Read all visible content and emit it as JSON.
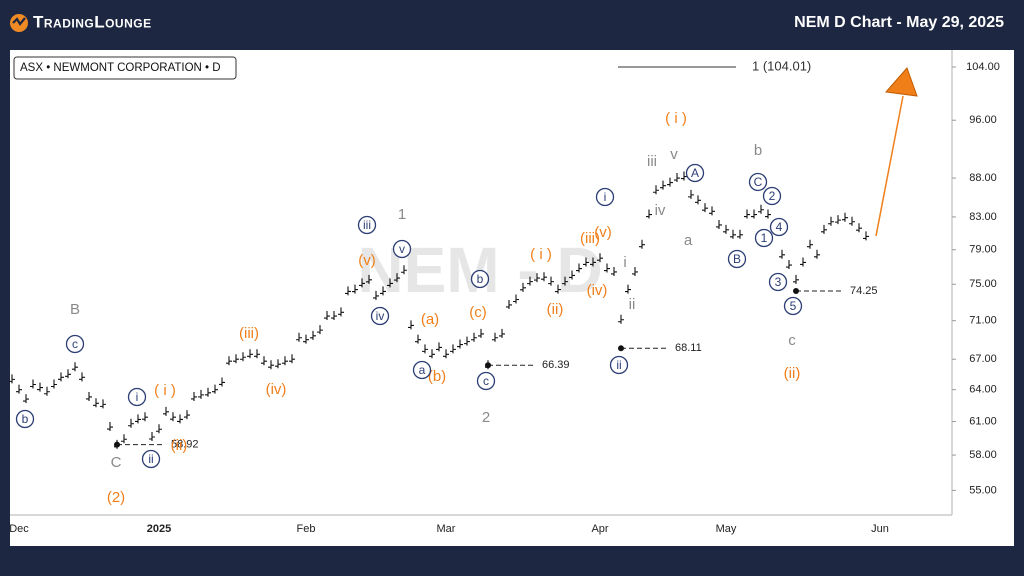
{
  "header": {
    "logo": "TradingLounge",
    "title": "NEM D Chart - May 29, 2025"
  },
  "chart_data": {
    "type": "ohlc",
    "subtitle": "ASX • NEWMONT CORPORATION • D",
    "watermark": "NEM - D",
    "target_label": "1 (104.01)",
    "log_scale": true,
    "color": "#111111",
    "ylim": [
      53.0,
      106.7
    ],
    "yticks": [
      {
        "value": 55,
        "label": "55.00"
      },
      {
        "value": 58,
        "label": "58.00"
      },
      {
        "value": 61,
        "label": "61.00"
      },
      {
        "value": 64,
        "label": "64.00"
      },
      {
        "value": 67,
        "label": "67.00"
      },
      {
        "value": 71,
        "label": "71.00"
      },
      {
        "value": 75,
        "label": "75.00"
      },
      {
        "value": 79,
        "label": "79.00"
      },
      {
        "value": 83,
        "label": "83.00"
      },
      {
        "value": 88,
        "label": "88.00"
      },
      {
        "value": 96,
        "label": "96.00"
      },
      {
        "value": 104,
        "label": "104.00"
      }
    ],
    "categories": [
      null,
      "Dec",
      null,
      null,
      null,
      null,
      null,
      null,
      null,
      null,
      null,
      null,
      null,
      null,
      null,
      null,
      null,
      null,
      null,
      null,
      null,
      "2025",
      null,
      null,
      null,
      null,
      null,
      null,
      null,
      null,
      null,
      null,
      null,
      null,
      null,
      null,
      null,
      null,
      null,
      null,
      null,
      null,
      "Feb",
      null,
      null,
      null,
      null,
      null,
      null,
      null,
      null,
      null,
      null,
      null,
      null,
      null,
      null,
      null,
      null,
      null,
      null,
      null,
      "Mar",
      null,
      null,
      null,
      null,
      null,
      null,
      null,
      null,
      null,
      null,
      null,
      null,
      null,
      null,
      null,
      null,
      null,
      null,
      null,
      null,
      null,
      "Apr",
      null,
      null,
      null,
      null,
      null,
      null,
      null,
      null,
      null,
      null,
      null,
      null,
      null,
      null,
      null,
      null,
      null,
      "May",
      null,
      null,
      null,
      null,
      null,
      null,
      null,
      null,
      null,
      null,
      null,
      null,
      null,
      null,
      null,
      null,
      null,
      null,
      null,
      null,
      null,
      "Jun",
      null,
      null,
      null,
      null,
      null,
      null,
      null,
      null,
      null
    ],
    "values": [
      65.0,
      64.0,
      63.1,
      64.5,
      64.2,
      63.8,
      64.5,
      65.2,
      65.5,
      66.2,
      65.2,
      63.3,
      62.7,
      62.6,
      60.5,
      58.9,
      59.4,
      60.8,
      61.2,
      61.4,
      59.6,
      60.3,
      61.9,
      61.4,
      61.2,
      61.6,
      63.3,
      63.5,
      63.7,
      64.0,
      64.7,
      66.8,
      67.0,
      67.2,
      67.5,
      67.5,
      66.8,
      66.4,
      66.5,
      66.8,
      67.0,
      69.2,
      69.0,
      69.4,
      70.0,
      71.5,
      71.5,
      71.9,
      74.2,
      74.4,
      75.1,
      75.5,
      73.7,
      74.2,
      75.1,
      75.7,
      76.6,
      70.5,
      69.0,
      68.0,
      67.5,
      68.2,
      67.5,
      68.0,
      68.5,
      68.8,
      69.2,
      69.6,
      66.4,
      69.2,
      69.6,
      72.7,
      73.3,
      74.6,
      75.3,
      75.7,
      75.8,
      75.3,
      74.4,
      75.3,
      76.0,
      76.8,
      77.5,
      77.5,
      78.0,
      76.8,
      76.4,
      71.1,
      74.4,
      76.4,
      79.6,
      83.3,
      86.4,
      87.0,
      87.4,
      88.0,
      88.2,
      85.8,
      85.1,
      84.1,
      83.7,
      82.0,
      81.4,
      80.8,
      80.8,
      83.3,
      83.3,
      83.9,
      83.3,
      81.4,
      78.4,
      77.2,
      75.5,
      77.5,
      79.6,
      78.4,
      81.4,
      82.4,
      82.6,
      82.9,
      82.4,
      81.6,
      80.6,
      null,
      null,
      null,
      null,
      null,
      null,
      null,
      null,
      null,
      null,
      null
    ],
    "levels": [
      58.92,
      66.39,
      68.11,
      74.25
    ],
    "annotations": [
      {
        "text": "B",
        "color": "#8a8a8a",
        "circled": false
      },
      {
        "text": "C",
        "color": "#8a8a8a",
        "circled": false
      },
      {
        "text": "1",
        "color": "#8a8a8a",
        "circled": false
      },
      {
        "text": "2",
        "color": "#8a8a8a",
        "circled": false
      },
      {
        "text": "iii",
        "color": "#8a8a8a",
        "circled": false
      },
      {
        "text": "v",
        "color": "#8a8a8a",
        "circled": false
      },
      {
        "text": "iv",
        "color": "#8a8a8a",
        "circled": false
      },
      {
        "text": "a",
        "color": "#8a8a8a",
        "circled": false
      },
      {
        "text": "b",
        "color": "#8a8a8a",
        "circled": false
      },
      {
        "text": "c",
        "color": "#8a8a8a",
        "circled": false
      },
      {
        "text": "i",
        "color": "#8a8a8a",
        "circled": false
      },
      {
        "text": "ii",
        "color": "#8a8a8a",
        "circled": false
      },
      {
        "text": "(2)",
        "color": "#f07f1a",
        "circled": false
      },
      {
        "text": "(iii)",
        "color": "#f07f1a",
        "circled": false
      },
      {
        "text": "(iv)",
        "color": "#f07f1a",
        "circled": false
      },
      {
        "text": "(v)",
        "color": "#f07f1a",
        "circled": false
      },
      {
        "text": "(a)",
        "color": "#f07f1a",
        "circled": false
      },
      {
        "text": "(b)",
        "color": "#f07f1a",
        "circled": false
      },
      {
        "text": "(c)",
        "color": "#f07f1a",
        "circled": false
      },
      {
        "text": "( i )",
        "color": "#f07f1a",
        "circled": false
      },
      {
        "text": "(ii)",
        "color": "#f07f1a",
        "circled": false
      },
      {
        "text": "(iii)",
        "color": "#f07f1a",
        "circled": false
      },
      {
        "text": "(iv)",
        "color": "#f07f1a",
        "circled": false
      },
      {
        "text": "(v)",
        "color": "#f07f1a",
        "circled": false
      },
      {
        "text": "( i )",
        "color": "#f07f1a",
        "circled": false
      },
      {
        "text": "(ii)",
        "color": "#f07f1a",
        "circled": false
      },
      {
        "text": "( i )",
        "color": "#f07f1a",
        "circled": false
      },
      {
        "text": "(ii)",
        "color": "#f07f1a",
        "circled": false
      },
      {
        "text": "c",
        "color": "#2c3e75",
        "circled": true
      },
      {
        "text": "b",
        "color": "#2c3e75",
        "circled": true
      },
      {
        "text": "i",
        "color": "#2c3e75",
        "circled": true
      },
      {
        "text": "ii",
        "color": "#2c3e75",
        "circled": true
      },
      {
        "text": "iii",
        "color": "#2c3e75",
        "circled": true
      },
      {
        "text": "v",
        "color": "#2c3e75",
        "circled": true
      },
      {
        "text": "iv",
        "color": "#2c3e75",
        "circled": true
      },
      {
        "text": "a",
        "color": "#2c3e75",
        "circled": true
      },
      {
        "text": "b",
        "color": "#2c3e75",
        "circled": true
      },
      {
        "text": "c",
        "color": "#2c3e75",
        "circled": true
      },
      {
        "text": "i",
        "color": "#2c3e75",
        "circled": true
      },
      {
        "text": "ii",
        "color": "#2c3e75",
        "circled": true
      },
      {
        "text": "A",
        "color": "#2c3e75",
        "circled": true
      },
      {
        "text": "B",
        "color": "#2c3e75",
        "circled": true
      },
      {
        "text": "C",
        "color": "#2c3e75",
        "circled": true
      },
      {
        "text": "2",
        "color": "#2c3e75",
        "circled": true
      },
      {
        "text": "4",
        "color": "#2c3e75",
        "circled": true
      },
      {
        "text": "1",
        "color": "#2c3e75",
        "circled": true
      },
      {
        "text": "3",
        "color": "#2c3e75",
        "circled": true
      },
      {
        "text": "5",
        "color": "#2c3e75",
        "circled": true
      }
    ]
  }
}
